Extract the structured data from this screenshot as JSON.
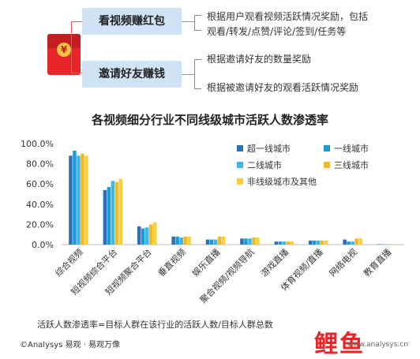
{
  "header": {
    "redpacket_symbol": "¥",
    "items": [
      {
        "label": "看视频赚红包",
        "desc": [
          "根据用户观看视频活跃情况奖励，包括",
          "观看/转发/点赞/评论/签到/任务等"
        ]
      },
      {
        "label": "邀请好友赚钱",
        "desc": [
          "根据邀请好友的数量奖励",
          "根据被邀请好友的观看活跃情况奖励"
        ]
      }
    ]
  },
  "chart_data": {
    "type": "bar",
    "title": "各视频细分行业不同线级城市活跃人数渗透率",
    "ylim": [
      0,
      100
    ],
    "yticks": [
      "100.0%",
      "80.0%",
      "60.0%",
      "40.0%",
      "20.0%",
      "0.0%"
    ],
    "legend_position": "top-right",
    "categories": [
      "综合视频",
      "短视频综合平台",
      "短视频聚合平台",
      "垂直视频",
      "娱乐直播",
      "聚合视频/视频导航",
      "游戏直播",
      "体育视频/直播",
      "网络电视",
      "教育直播"
    ],
    "series": [
      {
        "name": "超一线城市",
        "color": "#2c6fb7",
        "values": [
          88,
          54,
          18,
          8,
          5,
          6,
          3,
          4,
          5,
          0.4
        ]
      },
      {
        "name": "一线城市",
        "color": "#1a9ad6",
        "values": [
          93,
          57,
          16,
          8,
          5,
          6,
          3,
          4,
          3,
          0.3
        ]
      },
      {
        "name": "二线城市",
        "color": "#41b6e6",
        "values": [
          88,
          63,
          17,
          7,
          5,
          6,
          3,
          4,
          3,
          0.3
        ]
      },
      {
        "name": "三线城市",
        "color": "#f2b81e",
        "values": [
          90,
          62,
          20,
          8,
          8,
          7,
          3,
          4,
          6,
          0.3
        ]
      },
      {
        "name": "非线级城市及其他",
        "color": "#f7cf3f",
        "values": [
          88,
          65,
          22,
          8,
          8,
          7,
          3,
          4,
          6,
          0.3
        ]
      }
    ]
  },
  "footnote": "活跃人数渗透率=目标人群在该行业的活跃人数/目标人群总数",
  "copyright": "©Analysys 易观 · 易观万像",
  "watermark": {
    "logo": "鲤鱼",
    "url": "www.analysys.cn"
  }
}
